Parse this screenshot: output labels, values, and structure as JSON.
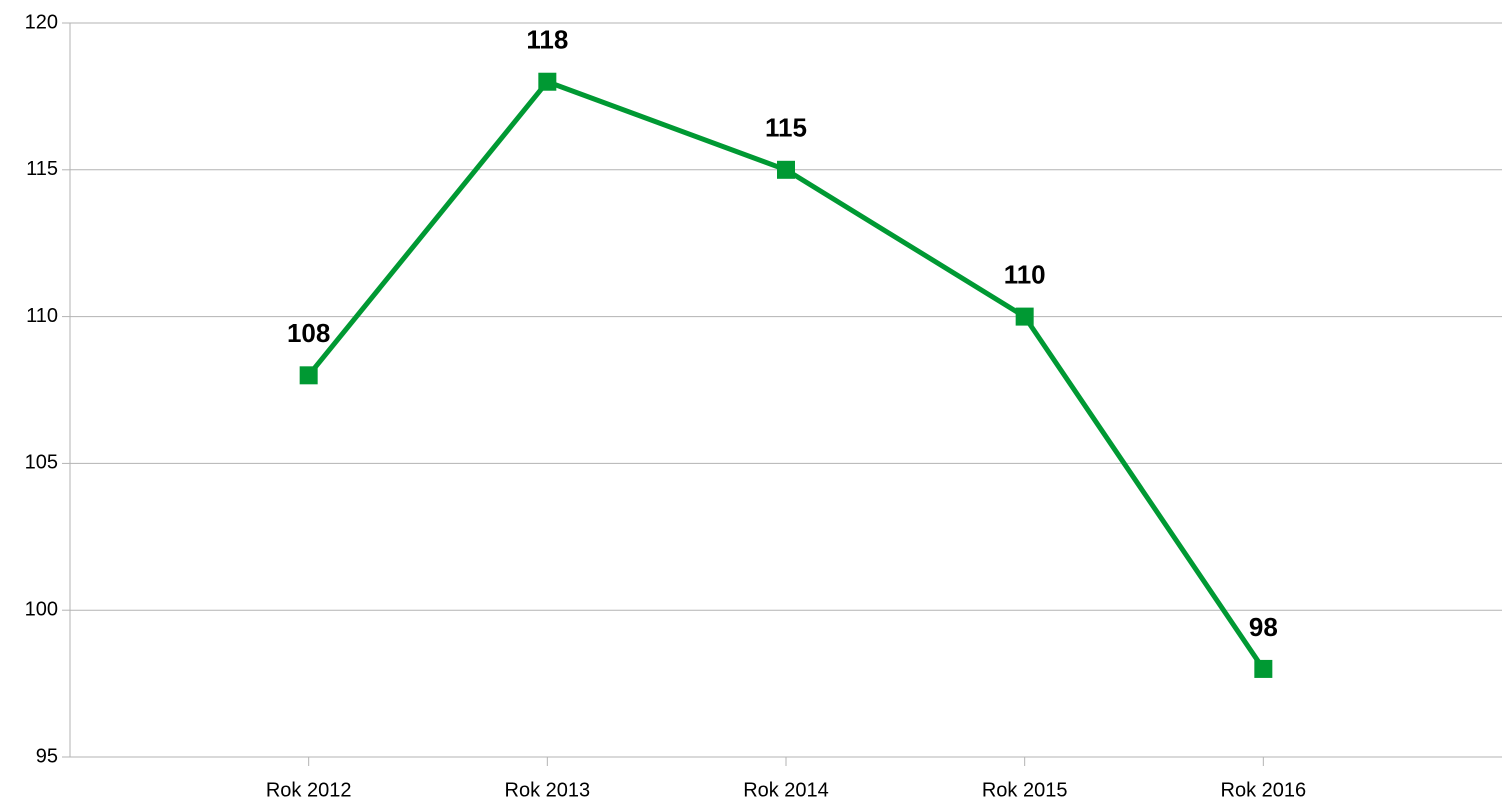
{
  "chart_data": {
    "type": "line",
    "categories": [
      "Rok 2012",
      "Rok 2013",
      "Rok 2014",
      "Rok 2015",
      "Rok 2016"
    ],
    "series": [
      {
        "color": "#009933",
        "values": [
          108,
          118,
          115,
          110,
          98
        ]
      }
    ],
    "ylim": [
      95,
      120
    ],
    "yticks": [
      95,
      100,
      105,
      110,
      115,
      120
    ],
    "grid": true
  }
}
